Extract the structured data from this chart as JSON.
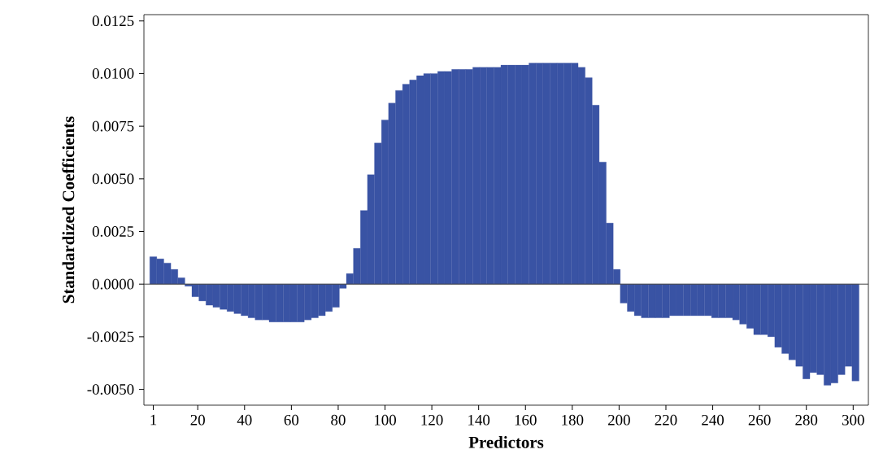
{
  "chart_data": {
    "type": "bar",
    "xlabel": "Predictors",
    "ylabel": "Standardized Coefficients",
    "color": "#3953a4",
    "x": [
      1,
      4,
      7,
      10,
      13,
      16,
      19,
      22,
      25,
      28,
      31,
      34,
      37,
      40,
      43,
      46,
      49,
      52,
      55,
      58,
      61,
      64,
      67,
      70,
      73,
      76,
      79,
      82,
      85,
      88,
      91,
      94,
      97,
      100,
      103,
      106,
      109,
      112,
      115,
      118,
      121,
      124,
      127,
      130,
      133,
      136,
      139,
      142,
      145,
      148,
      151,
      154,
      157,
      160,
      163,
      166,
      169,
      172,
      175,
      178,
      181,
      184,
      187,
      190,
      193,
      196,
      199,
      202,
      205,
      208,
      211,
      214,
      217,
      220,
      223,
      226,
      229,
      232,
      235,
      238,
      241,
      244,
      247,
      250,
      253,
      256,
      259,
      262,
      265,
      268,
      271,
      274,
      277,
      280,
      283,
      286,
      289,
      292,
      295,
      298,
      301
    ],
    "values": [
      0.0013,
      0.0012,
      0.001,
      0.0007,
      0.0003,
      -0.0001,
      -0.0006,
      -0.0008,
      -0.001,
      -0.0011,
      -0.0012,
      -0.0013,
      -0.0014,
      -0.0015,
      -0.0016,
      -0.0017,
      -0.0017,
      -0.0018,
      -0.0018,
      -0.0018,
      -0.0018,
      -0.0018,
      -0.0017,
      -0.0016,
      -0.0015,
      -0.0013,
      -0.0011,
      -0.0002,
      0.0005,
      0.0017,
      0.0035,
      0.0052,
      0.0067,
      0.0078,
      0.0086,
      0.0092,
      0.0095,
      0.0097,
      0.0099,
      0.01,
      0.01,
      0.0101,
      0.0101,
      0.0102,
      0.0102,
      0.0102,
      0.0103,
      0.0103,
      0.0103,
      0.0103,
      0.0104,
      0.0104,
      0.0104,
      0.0104,
      0.0105,
      0.0105,
      0.0105,
      0.0105,
      0.0105,
      0.0105,
      0.0105,
      0.0103,
      0.0098,
      0.0085,
      0.0058,
      0.0029,
      0.0007,
      -0.0009,
      -0.0013,
      -0.0015,
      -0.0016,
      -0.0016,
      -0.0016,
      -0.0016,
      -0.0015,
      -0.0015,
      -0.0015,
      -0.0015,
      -0.0015,
      -0.0015,
      -0.0016,
      -0.0016,
      -0.0016,
      -0.0017,
      -0.0019,
      -0.0021,
      -0.0024,
      -0.0024,
      -0.0025,
      -0.003,
      -0.0033,
      -0.0036,
      -0.0039,
      -0.0045,
      -0.0042,
      -0.0043,
      -0.0048,
      -0.0047,
      -0.0043,
      -0.0039,
      -0.0046
    ],
    "xlim": [
      -3,
      306.5
    ],
    "ylim": [
      -0.00575,
      0.0128
    ],
    "xticks": [
      1,
      20,
      40,
      60,
      80,
      100,
      120,
      140,
      160,
      180,
      200,
      220,
      240,
      260,
      280,
      300
    ],
    "yticks": [
      {
        "value": -0.005,
        "label": "-0.0050"
      },
      {
        "value": -0.0025,
        "label": "-0.0025"
      },
      {
        "value": 0,
        "label": "0.0000"
      },
      {
        "value": 0.0025,
        "label": "0.0025"
      },
      {
        "value": 0.005,
        "label": "0.0050"
      },
      {
        "value": 0.0075,
        "label": "0.0075"
      },
      {
        "value": 0.01,
        "label": "0.0100"
      },
      {
        "value": 0.0125,
        "label": "0.0125"
      }
    ],
    "ref_lines": [
      {
        "axis": "y",
        "value": 0,
        "color": "#404040"
      }
    ],
    "grid": false
  }
}
